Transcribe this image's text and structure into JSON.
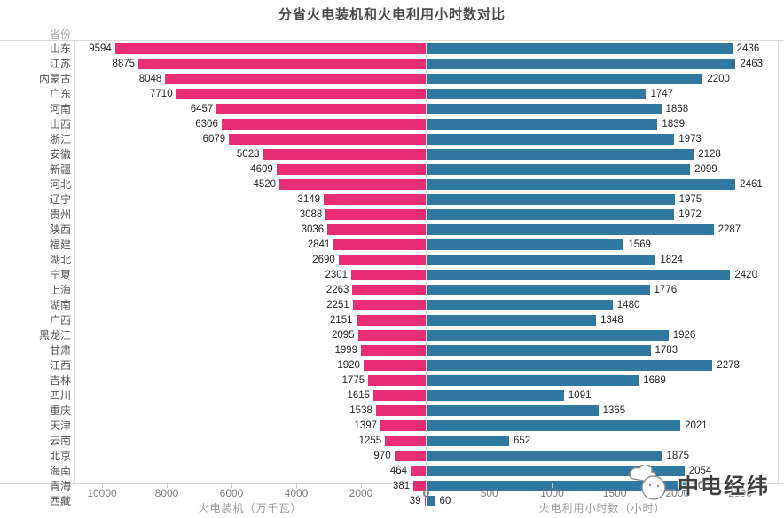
{
  "title": "分省火电装机和火电利用小时数对比",
  "header": {
    "province_col_label": "省份"
  },
  "watermark": {
    "text": "中电经纬"
  },
  "colors": {
    "capacity_bar": "#e92d74",
    "hours_bar": "#30789f",
    "gridline": "#d8d8d8"
  },
  "chart_data": {
    "type": "bar",
    "subtype": "bidirectional-horizontal",
    "title": "分省火电装机和火电利用小时数对比",
    "categories": [
      "山东",
      "江苏",
      "内蒙古",
      "广东",
      "河南",
      "山西",
      "浙江",
      "安徽",
      "新疆",
      "河北",
      "辽宁",
      "贵州",
      "陕西",
      "福建",
      "湖北",
      "宁夏",
      "上海",
      "湖南",
      "广西",
      "黑龙江",
      "甘肃",
      "江西",
      "吉林",
      "四川",
      "重庆",
      "天津",
      "云南",
      "北京",
      "海南",
      "青海",
      "西藏"
    ],
    "series": [
      {
        "name": "火电装机",
        "axis_label": "火电装机（万千瓦）",
        "side": "left",
        "color": "#e92d74",
        "axis_ticks": [
          10000,
          8000,
          6000,
          4000,
          2000,
          0
        ],
        "axis_max": 10850,
        "values": [
          9594,
          8875,
          8048,
          7710,
          6457,
          6306,
          6079,
          5028,
          4609,
          4520,
          3149,
          3088,
          3036,
          2841,
          2690,
          2301,
          2263,
          2251,
          2151,
          2095,
          1999,
          1920,
          1775,
          1615,
          1538,
          1397,
          1255,
          970,
          464,
          381,
          39
        ]
      },
      {
        "name": "火电利用小时数",
        "axis_label": "火电利用小时数（小时）",
        "side": "right",
        "color": "#30789f",
        "axis_ticks": [
          0,
          500,
          1000,
          1500,
          2000,
          2500
        ],
        "axis_max": 2800,
        "values": [
          2436,
          2463,
          2200,
          1747,
          1868,
          1839,
          1973,
          2128,
          2099,
          2461,
          1975,
          1972,
          2287,
          1569,
          1824,
          2420,
          1776,
          1480,
          1348,
          1926,
          1783,
          2278,
          1689,
          1091,
          1365,
          2021,
          652,
          1875,
          2054,
          2081,
          60
        ]
      }
    ],
    "legend": "none",
    "grid": "off"
  }
}
